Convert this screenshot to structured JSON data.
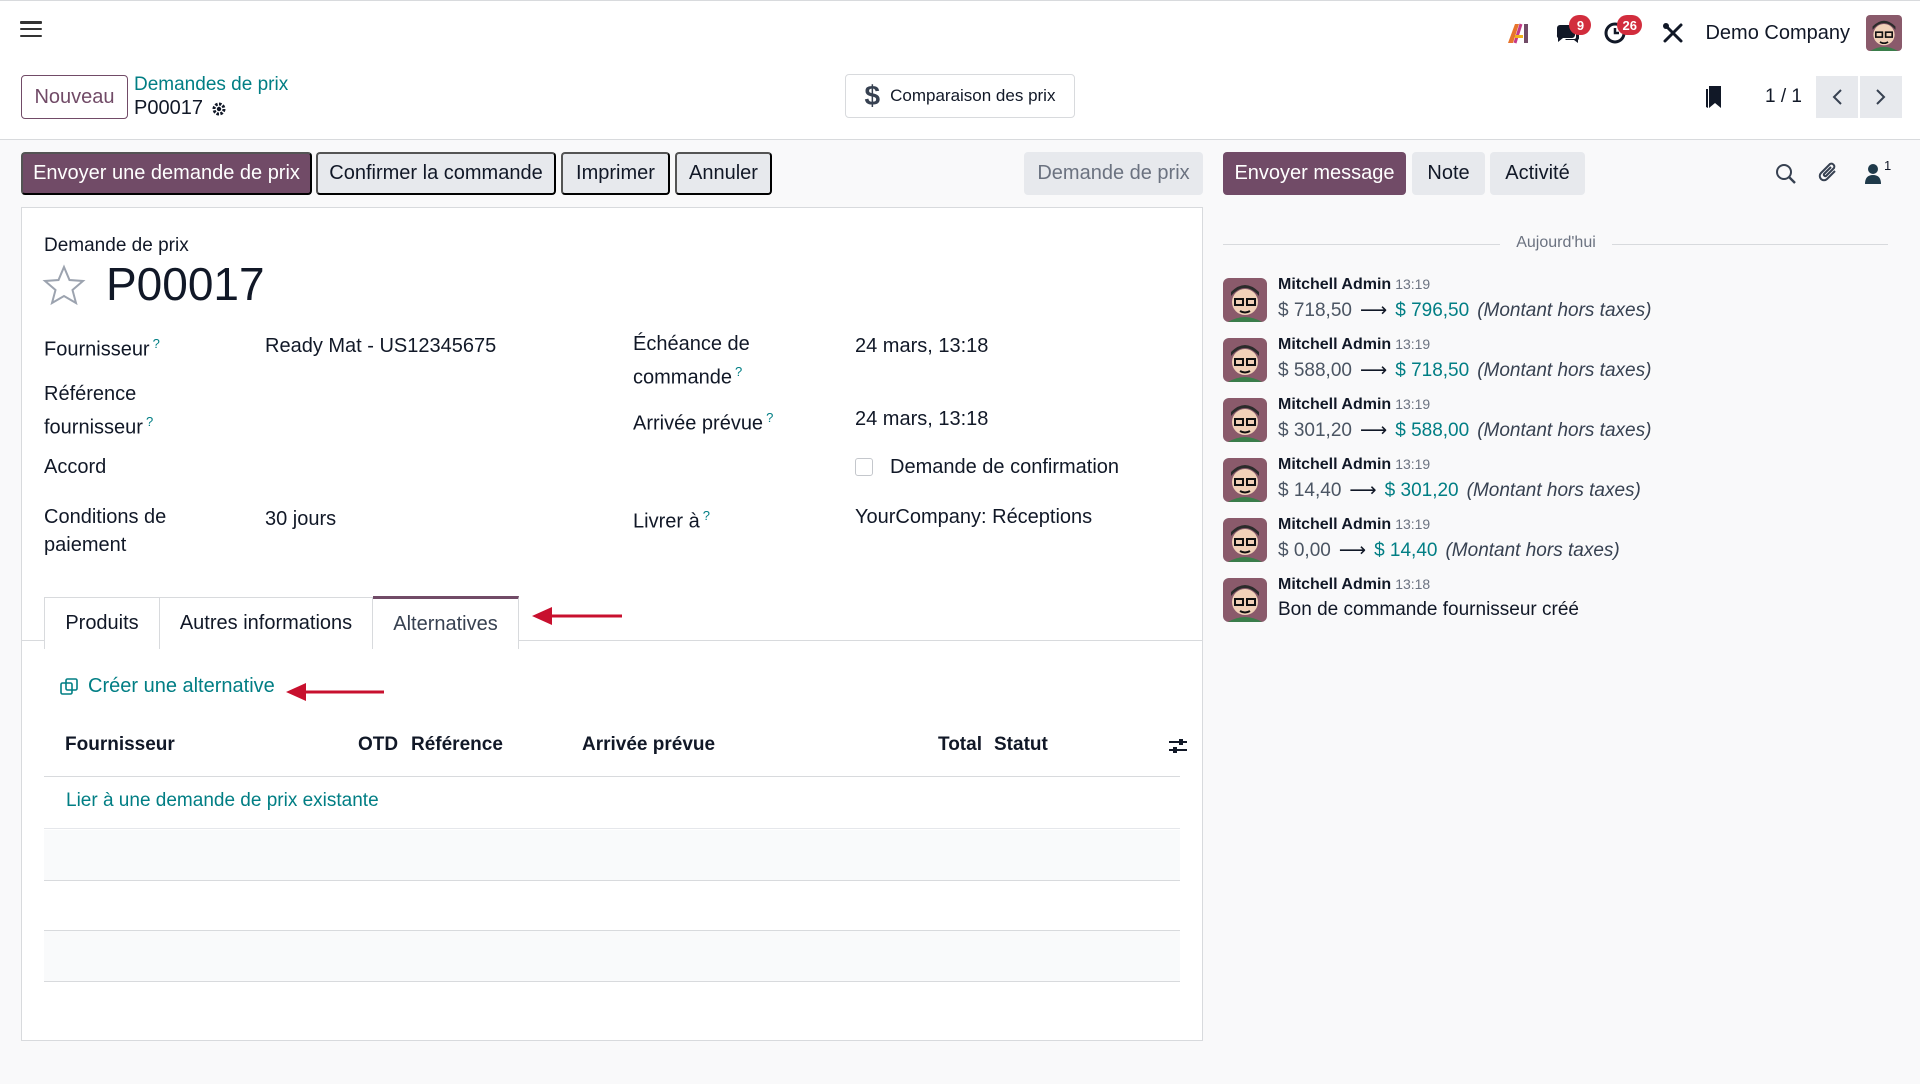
{
  "navbar": {
    "company": "Demo Company",
    "messages_count": "9",
    "activities_count": "26"
  },
  "breadcrumb": {
    "new_button": "Nouveau",
    "parent": "Demandes de prix",
    "current": "P00017"
  },
  "smart_button": {
    "label": "Comparaison des prix"
  },
  "pager": {
    "text": "1 / 1"
  },
  "status_bar": {
    "send_rfq": "Envoyer une demande de prix",
    "confirm": "Confirmer la commande",
    "print": "Imprimer",
    "cancel": "Annuler",
    "stage": "Demande de prix"
  },
  "form": {
    "doc_type": "Demande de prix",
    "doc_name": "P00017",
    "vendor_label": "Fournisseur",
    "vendor_value": "Ready Mat - US12345675",
    "vendor_ref_label_1": "Référence",
    "vendor_ref_label_2": "fournisseur",
    "agreement_label": "Accord",
    "payment_label_1": "Conditions de",
    "payment_label_2": "paiement",
    "payment_value": "30 jours",
    "deadline_label_1": "Échéance de",
    "deadline_label_2": "commande",
    "deadline_value": "24 mars, 13:18",
    "arrival_label": "Arrivée prévue",
    "arrival_value": "24 mars, 13:18",
    "ask_confirm_label": "Demande de confirmation",
    "deliver_label": "Livrer à",
    "deliver_value": "YourCompany: Réceptions"
  },
  "tabs": [
    "Produits",
    "Autres informations",
    "Alternatives"
  ],
  "alternatives": {
    "create_link": "Créer une alternative",
    "columns": [
      "Fournisseur",
      "OTD",
      "Référence",
      "Arrivée prévue",
      "Total",
      "Statut"
    ],
    "link_existing": "Lier à une demande de prix existante"
  },
  "chatter": {
    "send_message": "Envoyer message",
    "note": "Note",
    "activity": "Activité",
    "followers_count": "1",
    "date_separator": "Aujourd'hui",
    "messages": [
      {
        "author": "Mitchell Admin",
        "time": "13:19",
        "old": "$ 718,50",
        "new": "$ 796,50",
        "field": "(Montant hors taxes)"
      },
      {
        "author": "Mitchell Admin",
        "time": "13:19",
        "old": "$ 588,00",
        "new": "$ 718,50",
        "field": "(Montant hors taxes)"
      },
      {
        "author": "Mitchell Admin",
        "time": "13:19",
        "old": "$ 301,20",
        "new": "$ 588,00",
        "field": "(Montant hors taxes)"
      },
      {
        "author": "Mitchell Admin",
        "time": "13:19",
        "old": "$ 14,40",
        "new": "$ 301,20",
        "field": "(Montant hors taxes)"
      },
      {
        "author": "Mitchell Admin",
        "time": "13:19",
        "old": "$ 0,00",
        "new": "$ 14,40",
        "field": "(Montant hors taxes)"
      },
      {
        "author": "Mitchell Admin",
        "time": "13:18",
        "text": "Bon de commande fournisseur créé"
      }
    ]
  },
  "colors": {
    "primary": "#714b67",
    "link": "#017e84",
    "annotation_arrow": "#c8102e"
  }
}
